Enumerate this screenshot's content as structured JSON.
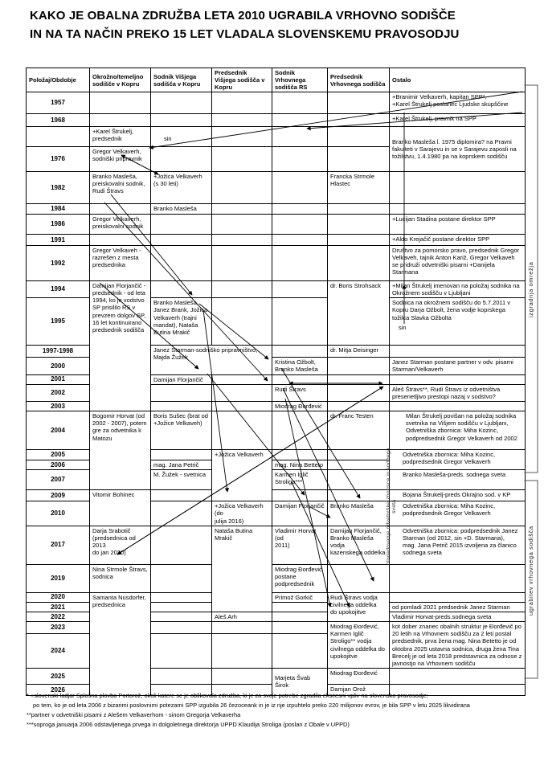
{
  "title": {
    "l1": "KAKO JE OBALNA ZDRUŽBA LETA 2010 UGRABILA VRHOVNO SODIŠČE",
    "l2": "IN NA TA NAČIN PREKO 15 LET VLADALA SLOVENSKEMU PRAVOSODJU"
  },
  "table": {
    "headers": [
      "Položaj/Obdobje",
      "Okrožno/temeljno sodišče v Kopru",
      "Sodnik Višjega sodišča v Kopru",
      "Predsednik Višjega sodišča v Kopru",
      "Sodnik Vrhovnega sodišča RS",
      "Predsednik Vrhovnega sodišča",
      "Ostalo"
    ],
    "rows": [
      {
        "y": "1957",
        "cells": [
          {
            "c": 6,
            "t": "+Branimir Velkaverh, kapitan SPP*,\n+Karel Štrukelj poslanec Ljudske skupščine"
          }
        ]
      },
      {
        "y": "1968",
        "cells": [
          {
            "c": 6,
            "t": "+Karel Štrukelj, pravnik na SPP"
          }
        ]
      },
      {
        "y": "",
        "cells": [
          {
            "c": 1,
            "t": "+Karel Štrukelj,\npredsednik"
          },
          {
            "c": 6,
            "r": 2,
            "va": "m",
            "t": "Branko Masleša l. 1975 diplomira? na Pravni fakulteti v Sarajevu in se v Sarajevu zaposli na tožilstvu, 1.4.1980 pa na koprskem sodišču"
          }
        ]
      },
      {
        "y": "1976",
        "cells": [
          {
            "c": 1,
            "t": "Gregor Velkaverh,\nsodniški pripravnik"
          }
        ]
      },
      {
        "y": "1982",
        "cells": [
          {
            "c": 1,
            "t": "Branko Masleša,\npreiskovalni sodnik,\nRudi Štravs"
          },
          {
            "c": 2,
            "t": "+Jožica Velkaverh\n(s 30 leti)"
          },
          {
            "c": 5,
            "t": "Francka Strmole\nHlastec"
          }
        ]
      },
      {
        "y": "1984",
        "cells": [
          {
            "c": 2,
            "t": "Branko Masleša"
          }
        ]
      },
      {
        "y": "1986",
        "cells": [
          {
            "c": 1,
            "t": "Gregor Velkaverh,\npreiskovalni sodnik"
          },
          {
            "c": 6,
            "t": "+Lucijan Stadina postane direktor SPP"
          }
        ]
      },
      {
        "y": "1991",
        "cells": [
          {
            "c": 6,
            "t": "+Aldo Krejačič postane direktor SPP"
          }
        ]
      },
      {
        "y": "1992",
        "cells": [
          {
            "c": 1,
            "t": "Gregor Velkaveh -\nrazrešen z mesta\npredsednika"
          },
          {
            "c": 6,
            "t": "Društvo za pomorsko pravo, predsednik Gregor Velkaveh, tajnik Anton Kariž, Gregor Velkaveh se pridruži odvetniški pisarni +Danijela Starmana"
          }
        ]
      },
      {
        "y": "1994",
        "cells": [
          {
            "c": 1,
            "r": 7,
            "t": "Damijan Florjančič -\npredsednik - od leta\n1994, ko je vodstvo\nSP prisililo RS v\nprevzem dolgov SP,\n16 let kontinuirano\npredsednik sodišča"
          },
          {
            "c": 5,
            "r": 2,
            "t": "dr. Boris Strohsack"
          },
          {
            "c": 6,
            "t": "+Milan Štrukelj imenovan na položaj sodnika na Okrožnem sodišču v Ljubljani"
          }
        ]
      },
      {
        "y": "1995",
        "cells": [
          {
            "c": 2,
            "t": "Branko Masleša,\nJanez Brank, Jožica\nVelkaverh (trajni\nmandat), Nataša\nButina Mrakič"
          },
          {
            "c": 6,
            "t": "Sodnica na okrožnem sodišču do 5.7.2011 v Kopru Darja Ožbolt, žena vodje koprskega tožilca Slavka Ožbolta"
          }
        ]
      },
      {
        "y": "1997-1998",
        "cells": [
          {
            "c": 2,
            "cs": 2,
            "r": 2,
            "t": "Janez Starman-sodniško pripravništvo,\nMajda Žužek"
          },
          {
            "c": 5,
            "t": "dr. Mitja Deisinger"
          }
        ]
      },
      {
        "y": "2000",
        "cells": [
          {
            "c": 4,
            "t": "Kristina Ožbolt,\nBranko Masleša"
          },
          {
            "c": 6,
            "t": "Janez Starman postane partner v odv. pisarni Starman/Velkaverh"
          }
        ]
      },
      {
        "y": "2001",
        "cells": [
          {
            "c": 2,
            "t": "Damijan Florjančič"
          }
        ]
      },
      {
        "y": "2002",
        "cells": [
          {
            "c": 4,
            "t": "Rudi Štravs"
          },
          {
            "c": 6,
            "t": "Aleš Štravs**, Rudi Štravs iz odvetništva presenetljivo prestopi nazaj v sodstvo?"
          }
        ]
      },
      {
        "y": "2003",
        "cells": [
          {
            "c": 4,
            "t": "Miodrag Đorđević"
          }
        ]
      },
      {
        "y": "2004",
        "cells": [
          {
            "c": 1,
            "r": 4,
            "t": "Bogomir Horvat (od\n2002 - 2007), potem\ngre za odvetnika k\nMatozu"
          },
          {
            "c": 2,
            "t": "Boris Sušec (brat od\n+Jožice Velkaveh)"
          },
          {
            "c": 5,
            "t": "dr. Franc Testen"
          },
          {
            "c": 6,
            "ind": 2,
            "t": "Milan Štrukelj povišan na položaj sodnika svetnika na Višjem sodišču v Ljubljani,\nOdvetniška zbornica: Miha Kozinc, podpredsednik Gregor Velkaverh od 2002"
          }
        ]
      },
      {
        "y": "2005",
        "cells": [
          {
            "c": 3,
            "r": 4,
            "t": "+Jožica Velkaverh"
          },
          {
            "c": 6,
            "r": 2,
            "ind": 1,
            "t": "Odvetniška zbornica: Miha Kozinc,\npodpredsednik Gregor Velkaverh"
          }
        ]
      },
      {
        "y": "2006",
        "cells": [
          {
            "c": 2,
            "t": "mag. Jana Petrič"
          },
          {
            "c": 4,
            "t": "mag. Nina Betteto"
          }
        ]
      },
      {
        "y": "2007",
        "cells": [
          {
            "c": 2,
            "t": "M. Žužek - svetnica"
          },
          {
            "c": 4,
            "t": "Karmen Iglič\nStroligo***"
          },
          {
            "c": 6,
            "ind": 1,
            "t": "Branko Masleša-preds. sodnega sveta"
          }
        ]
      },
      {
        "y": "2009",
        "cells": [
          {
            "c": 1,
            "r": 2,
            "t": "Vitomir Bohinec"
          },
          {
            "c": 6,
            "ind": 1,
            "t": "Bojana Štrukelj-preds Okrajno sod. v KP"
          }
        ]
      },
      {
        "y": "2010",
        "cells": [
          {
            "c": 3,
            "t": "+Jožica Velkaverh (do\njulija 2016)"
          },
          {
            "c": 4,
            "t": "Damijan Florjančič"
          },
          {
            "c": 5,
            "t": "Branko Masleša"
          },
          {
            "c": 6,
            "ind": 1,
            "t": "Odvetniška zbornica: Miha Kozinc,\npodpredsednik Gregor Velkaverh"
          }
        ]
      },
      {
        "y": "2017",
        "cells": [
          {
            "c": 1,
            "t": "Darja Srabotič\n(predsednica od 2013\ndo jan 2020)"
          },
          {
            "c": 3,
            "r": 4,
            "t": "Nataša Butina Mrakič"
          },
          {
            "c": 4,
            "t": "Vladimir Horvat (od\n2011)"
          },
          {
            "c": 5,
            "t": "Damijan Florjančič,\nBranko Masleša vodja\nkazenskega oddelka"
          },
          {
            "c": 6,
            "ind": 1,
            "t": "Odvetniška zbornica: podpredsednik Janez Starman (od 2012, sin +D. Starmana),\nmag. Jana Petrič 2015 izvoljena za članico sodnega sveta"
          }
        ]
      },
      {
        "y": "2019",
        "cells": [
          {
            "c": 1,
            "t": "Nina Strmole Štravs,\nsodnica"
          },
          {
            "c": 4,
            "t": "Miodrag Đorđević\npostane\npodpredsednik"
          }
        ]
      },
      {
        "y": "2020",
        "cells": [
          {
            "c": 1,
            "r": 7,
            "t": "Samanta Nusdorfer,\npredsednica"
          },
          {
            "c": 4,
            "t": "Primož Gorkič"
          },
          {
            "c": 5,
            "r": 3,
            "t": "Rudi Štravs vodja\ncivilnega oddelka\ndo upokojitve"
          }
        ]
      },
      {
        "y": "2021",
        "cells": [
          {
            "c": 6,
            "t": "od pomladi 2021 predsednik Janez Starman"
          }
        ]
      },
      {
        "y": "2022",
        "cells": [
          {
            "c": 3,
            "t": "Aleš Arh"
          },
          {
            "c": 6,
            "t": "Vladimir Horvat-preds.sodnega sveta"
          }
        ]
      },
      {
        "y": "2023",
        "cells": [
          {
            "c": 5,
            "r": 2,
            "t": "Miodrag Đorđević,\nKarmen Iglič\nStroligo** vodja\ncivilnega oddelka do\nupokojitve"
          },
          {
            "c": 6,
            "r": 2,
            "t": "kot dober znanec obalnih struktur je Đorđevič po 20 letih na Vrhovnem sodišču za 2 leti postal predsednik, prva žena mag. Nina Betetto je od oktobra 2025 ustavna sodnica, druga žena Tina Brecelj je od leta 2018 predstavnica za odnose z javnostjo na Vrhovnem sodišču"
          }
        ]
      },
      {
        "y": "2024",
        "cells": []
      },
      {
        "y": "2025",
        "cells": [
          {
            "c": 4,
            "r": 2,
            "va": "m",
            "t": "Marjeta Švab Širok"
          },
          {
            "c": 5,
            "t": "Miodrag Đorđević"
          }
        ]
      },
      {
        "y": "2026",
        "cells": [
          {
            "c": 5,
            "t": "Damjan Orož"
          }
        ]
      }
    ]
  },
  "annotations": {
    "network": "izgradnja omrežja",
    "hijack": "ugrabitev vrhovnega sodišča",
    "inner": "obvladovanje odvetniške zbornice in sodnega sveta",
    "sin1": "sin",
    "sin2": "sin"
  },
  "footnotes": {
    "l1": "* +slovenski ladjar Splošna plovba Portorož, okoli katere se je oblikovala združba, ki je za svoje potrebe zgradila ekscesni vpliv na slovensko pravosodje;",
    "l2": "po tem, ko je od leta 2006 z bizarimi poslovnimi potezami SPP izgubila 26 čezoceank in je iz nje izpuhtelo preko 220 milijonov evrov, je bila SPP v letu 2025 likvidirana",
    "l3": "**partner v odvetniški pisarni z Alešem Velkaverhom - sinom Gregorja Velkaverha",
    "l4": "***soproga januarja 2006 odstavljenega prvega in dolgoletnega direktorja UPPD Klaudija Stroliga (poslan z Obale v UPPD)"
  }
}
